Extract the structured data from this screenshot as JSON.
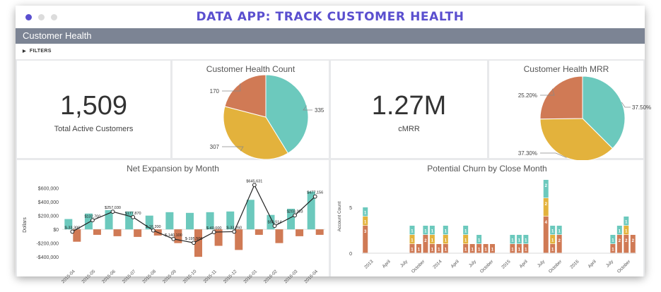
{
  "window": {
    "dots": [
      "#5a4fcf",
      "#dcdcdc",
      "#dcdcdc"
    ]
  },
  "app": {
    "title": "DATA APP: TRACK CUSTOMER HEALTH",
    "title_color": "#5a4fcf"
  },
  "dashboard": {
    "section_title": "Customer Health",
    "filters_label": "FILTERS",
    "kpis": [
      {
        "value": "1,509",
        "label": "Total Active Customers"
      },
      {
        "value": "1.27M",
        "label": "cMRR"
      }
    ]
  },
  "colors": {
    "teal": "#6cc9bd",
    "gold": "#e3b23c",
    "orange": "#d07a55",
    "line": "#222222"
  },
  "chart_data": [
    {
      "type": "pie",
      "title": "Customer Health Count",
      "slices": [
        {
          "value": 335,
          "label": "335",
          "color": "#6cc9bd"
        },
        {
          "value": 307,
          "label": "307",
          "color": "#e3b23c"
        },
        {
          "value": 170,
          "label": "170",
          "color": "#d07a55"
        }
      ]
    },
    {
      "type": "pie",
      "title": "Customer Health MRR",
      "slices": [
        {
          "value": 37.5,
          "label": "37.50%",
          "color": "#6cc9bd"
        },
        {
          "value": 37.3,
          "label": "37.30%",
          "color": "#e3b23c"
        },
        {
          "value": 25.2,
          "label": "25.20%",
          "color": "#d07a55"
        }
      ]
    },
    {
      "type": "bar",
      "title": "Net Expansion by Month",
      "ylabel": "Dollars",
      "ylim": [
        -450000,
        700000
      ],
      "yticks": [
        600000,
        400000,
        200000,
        0,
        -200000,
        -400000
      ],
      "ytick_labels": [
        "$600,000",
        "$400,000",
        "$200,000",
        "$0",
        "-$200,000",
        "-$400,000"
      ],
      "categories": [
        "2015-04",
        "2015-05",
        "2015-06",
        "2015-07",
        "2015-08",
        "2015-09",
        "2015-10",
        "2015-11",
        "2015-12",
        "2016-01",
        "2016-02",
        "2016-03",
        "2016-04"
      ],
      "series": [
        {
          "values": [
            150000,
            230000,
            280000,
            260000,
            200000,
            250000,
            240000,
            250000,
            260000,
            430000,
            210000,
            300000,
            550000
          ],
          "color": "#6cc9bd"
        },
        {
          "values": [
            -180000,
            -80000,
            -100000,
            -110000,
            -90000,
            -200000,
            -400000,
            -240000,
            -300000,
            -80000,
            -200000,
            -100000,
            -80000
          ],
          "color": "#d07a55"
        },
        {
          "values": [
            -33300,
            132700,
            257030,
            177870,
            -16200,
            -140100,
            -195500,
            -40000,
            -33260,
            645631,
            50514,
            203303,
            477156
          ],
          "labels": [
            "$-33,300",
            "$132,700",
            "$257,030",
            "$177,870",
            "$-16,200",
            "$-140,100",
            "$-195,500",
            "$-40,000",
            "$-33,260",
            "$645,631",
            "$50,514",
            "$203,303",
            "$477,156"
          ],
          "color": "#222222"
        }
      ]
    },
    {
      "type": "bar",
      "title": "Potential Churn by Close Month",
      "ylabel": "Account Count",
      "ylim": [
        0,
        8
      ],
      "yticks": [
        0,
        5
      ],
      "x_tick_labels": [
        "2013",
        "April",
        "July",
        "October",
        "2014",
        "April",
        "July",
        "October",
        "2015",
        "April",
        "July",
        "October",
        "2016",
        "April",
        "July",
        "October"
      ],
      "stacks": [
        {
          "teal": 1,
          "gold": 1,
          "orange": 3
        },
        {},
        {},
        {},
        {},
        {},
        {},
        {
          "teal": 1,
          "gold": 1,
          "orange": 1
        },
        {
          "orange": 1
        },
        {
          "teal": 1,
          "orange": 2
        },
        {
          "teal": 1,
          "gold": 1,
          "orange": 1
        },
        {
          "orange": 1
        },
        {
          "teal": 1,
          "gold": 1,
          "orange": 1
        },
        {},
        {},
        {
          "teal": 1,
          "gold": 1,
          "orange": 1
        },
        {
          "orange": 1
        },
        {
          "teal": 1,
          "orange": 1
        },
        {
          "orange": 1
        },
        {
          "orange": 1
        },
        {},
        {},
        {
          "teal": 1,
          "orange": 1
        },
        {
          "teal": 1,
          "orange": 1
        },
        {
          "teal": 1,
          "orange": 1
        },
        {},
        {},
        {
          "teal": 2,
          "gold": 2,
          "orange": 4
        },
        {
          "teal": 1,
          "gold": 1,
          "orange": 1
        },
        {
          "teal": 1,
          "orange": 2
        },
        {},
        {},
        {},
        {},
        {},
        {},
        {},
        {
          "teal": 1,
          "orange": 1
        },
        {
          "teal": 1,
          "orange": 2
        },
        {
          "teal": 1,
          "gold": 1,
          "orange": 2
        },
        {
          "orange": 2
        }
      ]
    }
  ]
}
